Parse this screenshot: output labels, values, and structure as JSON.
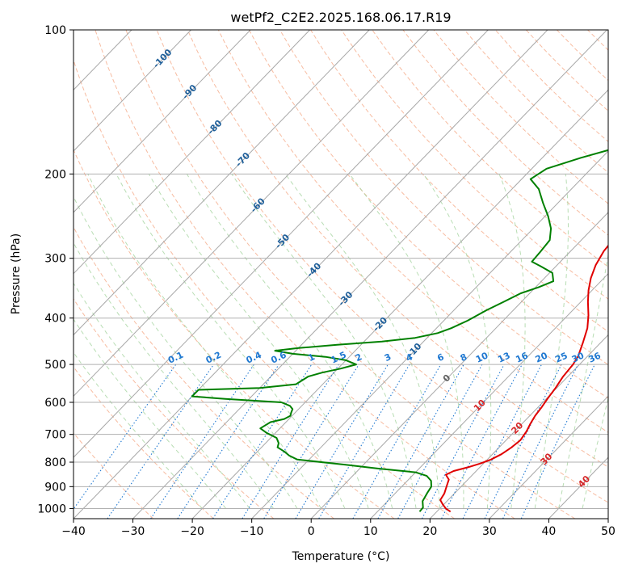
{
  "chart_data": {
    "type": "line",
    "title": "wetPf2_C2E2.2025.168.06.17.R19",
    "xlabel": "Temperature (°C)",
    "ylabel": "Pressure (hPa)",
    "xlim": [
      -40,
      50
    ],
    "ylim": [
      1050,
      100
    ],
    "y_scale": "log",
    "grid": true,
    "x_ticks": [
      -40,
      -30,
      -20,
      -10,
      0,
      10,
      20,
      30,
      40,
      50
    ],
    "y_ticks": [
      1000,
      900,
      800,
      700,
      600,
      500,
      400,
      300,
      200,
      100
    ],
    "series": [
      {
        "role": "temperature",
        "color": "#e00000",
        "points": [
          [
            22.3,
            1015
          ],
          [
            21.0,
            1000
          ],
          [
            19.8,
            980
          ],
          [
            18.7,
            960
          ],
          [
            18.3,
            930
          ],
          [
            17.3,
            890
          ],
          [
            16.8,
            870
          ],
          [
            15.5,
            850
          ],
          [
            16.2,
            835
          ],
          [
            18.0,
            820
          ],
          [
            19.5,
            805
          ],
          [
            20.6,
            790
          ],
          [
            21.5,
            770
          ],
          [
            22.1,
            745
          ],
          [
            22.4,
            720
          ],
          [
            22.0,
            690
          ],
          [
            21.4,
            665
          ],
          [
            20.9,
            640
          ],
          [
            20.6,
            615
          ],
          [
            20.2,
            590
          ],
          [
            19.8,
            560
          ],
          [
            19.2,
            530
          ],
          [
            18.9,
            500
          ],
          [
            18.4,
            480
          ],
          [
            17.0,
            450
          ],
          [
            15.4,
            420
          ],
          [
            13.5,
            395
          ],
          [
            11.2,
            370
          ],
          [
            9.4,
            350
          ],
          [
            7.8,
            330
          ],
          [
            6.5,
            310
          ],
          [
            5.6,
            290
          ],
          [
            5.2,
            270
          ],
          [
            5.0,
            250
          ],
          [
            4.5,
            225
          ],
          [
            4.1,
            205
          ],
          [
            4.0,
            195
          ],
          [
            4.8,
            185
          ],
          [
            6.5,
            175
          ],
          [
            8.3,
            165
          ],
          [
            9.7,
            155
          ],
          [
            10.5,
            148
          ],
          [
            10.3,
            140
          ],
          [
            9.6,
            130
          ],
          [
            9.3,
            118
          ],
          [
            9.8,
            108
          ],
          [
            10.3,
            100
          ]
        ]
      },
      {
        "role": "dewpoint",
        "color": "#008000",
        "points": [
          [
            17.1,
            1015
          ],
          [
            17.0,
            995
          ],
          [
            15.9,
            965
          ],
          [
            15.6,
            945
          ],
          [
            15.3,
            925
          ],
          [
            15.0,
            900
          ],
          [
            14.0,
            875
          ],
          [
            12.5,
            855
          ],
          [
            10.0,
            840
          ],
          [
            3.0,
            825
          ],
          [
            -3.0,
            810
          ],
          [
            -12.0,
            790
          ],
          [
            -14.0,
            775
          ],
          [
            -15.5,
            760
          ],
          [
            -17.3,
            745
          ],
          [
            -17.8,
            730
          ],
          [
            -19.0,
            712
          ],
          [
            -21.5,
            695
          ],
          [
            -23.3,
            680
          ],
          [
            -22.6,
            660
          ],
          [
            -20.8,
            650
          ],
          [
            -20.3,
            640
          ],
          [
            -20.7,
            630
          ],
          [
            -21.0,
            620
          ],
          [
            -22.0,
            610
          ],
          [
            -24.0,
            600
          ],
          [
            -34.0,
            590
          ],
          [
            -40,
            583
          ],
          [
            -40,
            565
          ],
          [
            -30.0,
            560
          ],
          [
            -24.5,
            550
          ],
          [
            -23.7,
            530
          ],
          [
            -22.0,
            520
          ],
          [
            -19.5,
            510
          ],
          [
            -17.6,
            500
          ],
          [
            -20.0,
            490
          ],
          [
            -24.0,
            482
          ],
          [
            -30.0,
            475
          ],
          [
            -33.5,
            468
          ],
          [
            -30.0,
            462
          ],
          [
            -24.0,
            455
          ],
          [
            -17.0,
            448
          ],
          [
            -12.0,
            440
          ],
          [
            -9.0,
            430
          ],
          [
            -7.5,
            420
          ],
          [
            -6.0,
            405
          ],
          [
            -4.5,
            385
          ],
          [
            -3.0,
            370
          ],
          [
            -1.5,
            355
          ],
          [
            0.5,
            345
          ],
          [
            2.0,
            335
          ],
          [
            0.5,
            322
          ],
          [
            -2.5,
            312
          ],
          [
            -4.8,
            305
          ],
          [
            -5.0,
            290
          ],
          [
            -5.3,
            275
          ],
          [
            -7.0,
            260
          ],
          [
            -9.5,
            245
          ],
          [
            -12.5,
            230
          ],
          [
            -15.5,
            215
          ],
          [
            -18.5,
            205
          ],
          [
            -17.5,
            195
          ],
          [
            -13.5,
            185
          ],
          [
            -10.0,
            178
          ],
          [
            -9.5,
            170
          ],
          [
            -11.0,
            162
          ],
          [
            -13.5,
            155
          ],
          [
            -14.8,
            148
          ],
          [
            -14.0,
            142
          ],
          [
            -11.5,
            138
          ],
          [
            -9.0,
            133
          ],
          [
            -6.5,
            128
          ],
          [
            -5.3,
            120
          ],
          [
            -4.0,
            112
          ],
          [
            -2.5,
            104
          ],
          [
            -1.5,
            100
          ]
        ]
      }
    ],
    "isotherm_labels": [
      "-100",
      "-90",
      "-80",
      "-70",
      "-60",
      "-50",
      "-40",
      "-30",
      "-20",
      "-10",
      "0",
      "10",
      "20",
      "30",
      "40"
    ],
    "mixing_ratio_labels": [
      "0.1",
      "0.2",
      "0.4",
      "0.6",
      "1",
      "1.5",
      "2",
      "3",
      "4",
      "6",
      "8",
      "10",
      "13",
      "16",
      "20",
      "25",
      "30",
      "36"
    ]
  }
}
